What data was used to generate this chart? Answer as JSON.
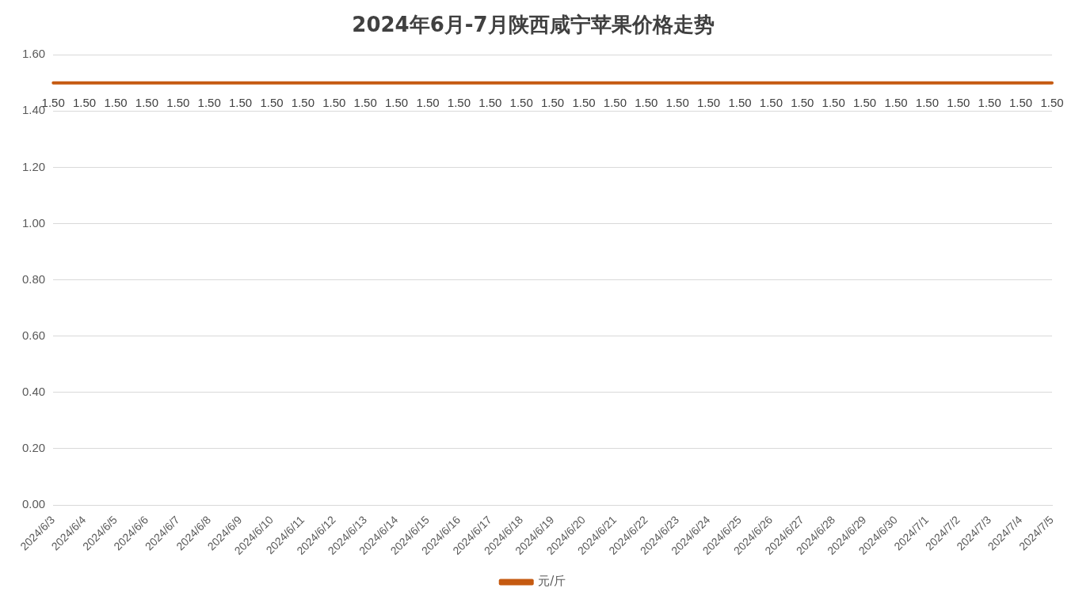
{
  "chart_data": {
    "type": "line",
    "title": "2024年6月-7月陕西咸宁苹果价格走势",
    "categories": [
      "2024/6/3",
      "2024/6/4",
      "2024/6/5",
      "2024/6/6",
      "2024/6/7",
      "2024/6/8",
      "2024/6/9",
      "2024/6/10",
      "2024/6/11",
      "2024/6/12",
      "2024/6/13",
      "2024/6/14",
      "2024/6/15",
      "2024/6/16",
      "2024/6/17",
      "2024/6/18",
      "2024/6/19",
      "2024/6/20",
      "2024/6/21",
      "2024/6/22",
      "2024/6/23",
      "2024/6/24",
      "2024/6/25",
      "2024/6/26",
      "2024/6/27",
      "2024/6/28",
      "2024/6/29",
      "2024/6/30",
      "2024/7/1",
      "2024/7/2",
      "2024/7/3",
      "2024/7/4",
      "2024/7/5"
    ],
    "series": [
      {
        "name": "元/斤",
        "color": "#c55a11",
        "values": [
          1.5,
          1.5,
          1.5,
          1.5,
          1.5,
          1.5,
          1.5,
          1.5,
          1.5,
          1.5,
          1.5,
          1.5,
          1.5,
          1.5,
          1.5,
          1.5,
          1.5,
          1.5,
          1.5,
          1.5,
          1.5,
          1.5,
          1.5,
          1.5,
          1.5,
          1.5,
          1.5,
          1.5,
          1.5,
          1.5,
          1.5,
          1.5,
          1.5
        ],
        "value_labels": [
          "1.50",
          "1.50",
          "1.50",
          "1.50",
          "1.50",
          "1.50",
          "1.50",
          "1.50",
          "1.50",
          "1.50",
          "1.50",
          "1.50",
          "1.50",
          "1.50",
          "1.50",
          "1.50",
          "1.50",
          "1.50",
          "1.50",
          "1.50",
          "1.50",
          "1.50",
          "1.50",
          "1.50",
          "1.50",
          "1.50",
          "1.50",
          "1.50",
          "1.50",
          "1.50",
          "1.50",
          "1.50",
          "1.50"
        ]
      }
    ],
    "ylim": [
      0,
      1.6
    ],
    "yticks": [
      {
        "value": 0,
        "label": "0.00"
      },
      {
        "value": 0.2,
        "label": "0.20"
      },
      {
        "value": 0.4,
        "label": "0.40"
      },
      {
        "value": 0.6,
        "label": "0.60"
      },
      {
        "value": 0.8,
        "label": "0.80"
      },
      {
        "value": 1,
        "label": "1.00"
      },
      {
        "value": 1.2,
        "label": "1.20"
      },
      {
        "value": 1.4,
        "label": "1.40"
      },
      {
        "value": 1.6,
        "label": "1.60"
      }
    ],
    "grid": "y",
    "legend": "bottom",
    "marker": "none",
    "line_style": "solid"
  }
}
